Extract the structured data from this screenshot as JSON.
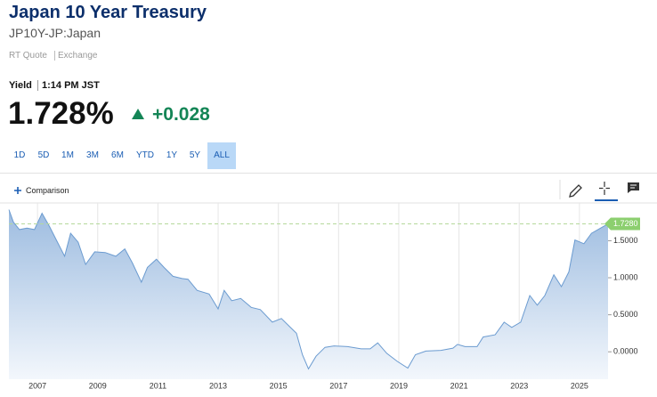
{
  "header": {
    "title": "Japan 10 Year Treasury",
    "symbol": "JP10Y-JP:Japan",
    "quote_type": "RT Quote",
    "quote_source": "Exchange",
    "yield_label": "Yield",
    "time": "1:14 PM JST",
    "last": "1.728%",
    "change": "+0.028"
  },
  "ranges": [
    "1D",
    "5D",
    "1M",
    "3M",
    "6M",
    "YTD",
    "1Y",
    "5Y",
    "ALL"
  ],
  "comparison": "Comparison",
  "chart_data": {
    "type": "area",
    "color": "#6b9bd0",
    "x": [
      2006.05,
      2006.2,
      2006.4,
      2006.65,
      2006.9,
      2007.15,
      2007.4,
      2007.6,
      2007.9,
      2008.1,
      2008.35,
      2008.6,
      2008.9,
      2009.25,
      2009.6,
      2009.9,
      2010.15,
      2010.45,
      2010.65,
      2010.95,
      2011.2,
      2011.5,
      2011.8,
      2012.0,
      2012.3,
      2012.7,
      2013.0,
      2013.2,
      2013.45,
      2013.75,
      2014.1,
      2014.4,
      2014.8,
      2015.1,
      2015.35,
      2015.6,
      2015.8,
      2016.0,
      2016.25,
      2016.55,
      2016.85,
      2017.3,
      2017.75,
      2018.05,
      2018.3,
      2018.6,
      2018.95,
      2019.3,
      2019.55,
      2019.9,
      2020.4,
      2020.8,
      2020.95,
      2021.2,
      2021.6,
      2021.8,
      2022.2,
      2022.5,
      2022.75,
      2023.05,
      2023.35,
      2023.6,
      2023.85,
      2024.15,
      2024.4,
      2024.65,
      2024.85,
      2025.15,
      2025.4,
      2025.7,
      2025.95
    ],
    "values": [
      1.92,
      1.75,
      1.65,
      1.67,
      1.65,
      1.87,
      1.69,
      1.53,
      1.29,
      1.6,
      1.48,
      1.18,
      1.35,
      1.34,
      1.29,
      1.39,
      1.2,
      0.94,
      1.14,
      1.25,
      1.14,
      1.02,
      0.99,
      0.98,
      0.83,
      0.78,
      0.58,
      0.83,
      0.69,
      0.72,
      0.6,
      0.57,
      0.4,
      0.45,
      0.35,
      0.25,
      -0.04,
      -0.23,
      -0.06,
      0.06,
      0.08,
      0.07,
      0.04,
      0.04,
      0.12,
      -0.02,
      -0.13,
      -0.22,
      -0.04,
      0.01,
      0.02,
      0.05,
      0.1,
      0.07,
      0.07,
      0.2,
      0.23,
      0.4,
      0.33,
      0.4,
      0.76,
      0.63,
      0.76,
      1.04,
      0.88,
      1.08,
      1.51,
      1.46,
      1.6,
      1.67,
      1.728
    ],
    "xlim": [
      2006.05,
      2025.95
    ],
    "xticks": [
      2007,
      2009,
      2011,
      2013,
      2015,
      2017,
      2019,
      2021,
      2023,
      2025
    ],
    "ylim": [
      -0.37,
      2.01
    ],
    "yticks": [
      {
        "value": 0,
        "label": "0.0000"
      },
      {
        "value": 0.5,
        "label": "0.5000"
      },
      {
        "value": 1,
        "label": "1.0000"
      },
      {
        "value": 1.5,
        "label": "1.5000"
      }
    ],
    "current": {
      "value": 1.728,
      "label": "1.7280"
    },
    "grid": true
  }
}
